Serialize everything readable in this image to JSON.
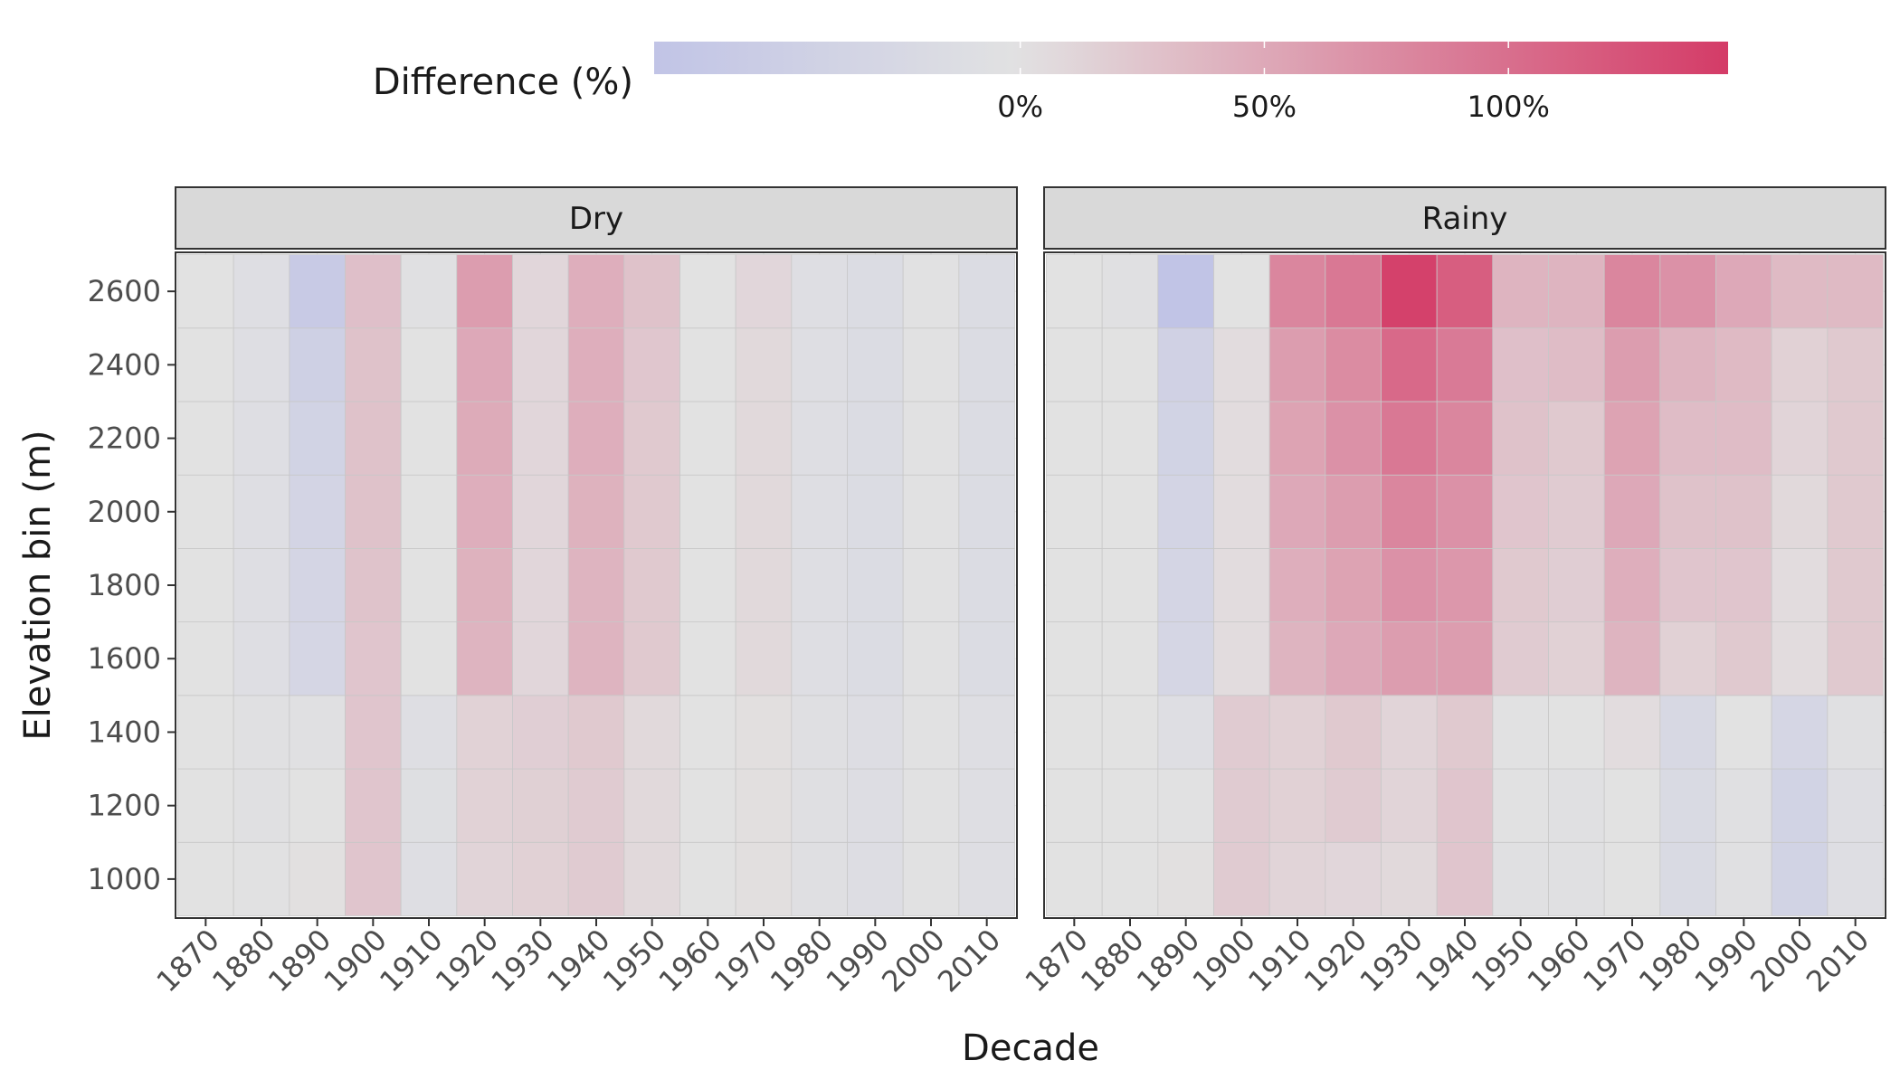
{
  "chart_data": {
    "type": "heatmap",
    "xlabel": "Decade",
    "ylabel": "Elevation bin (m)",
    "x": [
      "1870",
      "1880",
      "1890",
      "1900",
      "1910",
      "1920",
      "1930",
      "1940",
      "1950",
      "1960",
      "1970",
      "1980",
      "1990",
      "2000",
      "2010"
    ],
    "y": [
      1000,
      1200,
      1400,
      1600,
      1800,
      2000,
      2200,
      2400,
      2600
    ],
    "y_ticks": [
      "1000",
      "1200",
      "1400",
      "1600",
      "1800",
      "2000",
      "2200",
      "2400",
      "2600"
    ],
    "legend": {
      "title": "Difference (%)",
      "placement": "top",
      "range": [
        -75,
        145
      ],
      "ticks": [
        0,
        50,
        100
      ],
      "tick_labels": [
        "0%",
        "50%",
        "100%"
      ],
      "colors": {
        "low": "#c1c4e6",
        "mid": "#e2e2e2",
        "high": "#d43b67"
      }
    },
    "panel_strip_color": "#d9d9d9",
    "grid": true,
    "panels": [
      {
        "name": "Dry",
        "values": [
          [
            0,
            -2,
            2,
            25,
            -10,
            12,
            15,
            20,
            8,
            0,
            3,
            -7,
            -12,
            -3,
            -10
          ],
          [
            0,
            -4,
            0,
            25,
            -8,
            14,
            16,
            20,
            8,
            0,
            3,
            -7,
            -12,
            -3,
            -10
          ],
          [
            0,
            -4,
            -5,
            25,
            -10,
            14,
            17,
            22,
            8,
            0,
            3,
            -7,
            -12,
            -3,
            -10
          ],
          [
            0,
            -10,
            -30,
            25,
            0,
            40,
            10,
            40,
            22,
            0,
            8,
            -10,
            -15,
            -3,
            -15
          ],
          [
            0,
            -10,
            -32,
            27,
            0,
            42,
            10,
            40,
            22,
            0,
            8,
            -10,
            -15,
            -3,
            -15
          ],
          [
            0,
            -10,
            -34,
            28,
            0,
            45,
            10,
            42,
            22,
            0,
            8,
            -10,
            -15,
            -3,
            -15
          ],
          [
            0,
            -10,
            -38,
            28,
            0,
            48,
            10,
            45,
            22,
            0,
            8,
            -10,
            -15,
            -3,
            -15
          ],
          [
            0,
            -10,
            -45,
            28,
            0,
            50,
            10,
            45,
            24,
            0,
            8,
            -10,
            -15,
            -3,
            -15
          ],
          [
            0,
            -10,
            -60,
            30,
            -5,
            60,
            10,
            45,
            28,
            0,
            10,
            -10,
            -15,
            -3,
            -15
          ]
        ]
      },
      {
        "name": "Rainy",
        "values": [
          [
            0,
            0,
            2,
            20,
            12,
            10,
            8,
            25,
            -5,
            -5,
            0,
            -20,
            -5,
            -38,
            -10
          ],
          [
            0,
            0,
            -3,
            20,
            15,
            20,
            12,
            25,
            -3,
            -5,
            0,
            -20,
            -5,
            -38,
            -10
          ],
          [
            0,
            0,
            -10,
            20,
            15,
            22,
            12,
            22,
            -3,
            0,
            5,
            -25,
            0,
            -30,
            -5
          ],
          [
            0,
            0,
            -30,
            5,
            40,
            50,
            60,
            60,
            20,
            15,
            40,
            15,
            22,
            5,
            22
          ],
          [
            0,
            0,
            -32,
            5,
            45,
            55,
            70,
            65,
            22,
            18,
            45,
            25,
            25,
            5,
            22
          ],
          [
            0,
            0,
            -34,
            5,
            50,
            60,
            80,
            70,
            25,
            20,
            50,
            28,
            28,
            8,
            22
          ],
          [
            0,
            0,
            -38,
            5,
            55,
            70,
            92,
            80,
            28,
            22,
            55,
            33,
            33,
            12,
            22
          ],
          [
            0,
            0,
            -42,
            5,
            60,
            75,
            105,
            90,
            30,
            33,
            60,
            40,
            35,
            15,
            22
          ],
          [
            0,
            -5,
            -75,
            0,
            80,
            92,
            140,
            115,
            40,
            40,
            80,
            70,
            50,
            35,
            35
          ]
        ]
      }
    ]
  }
}
